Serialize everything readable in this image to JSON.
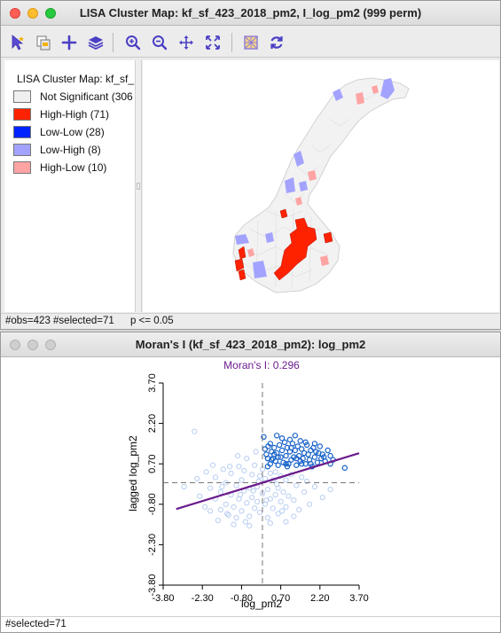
{
  "lisa_window": {
    "title": "LISA Cluster Map: kf_sf_423_2018_pm2, I_log_pm2 (999 perm)",
    "toolbar_icons": [
      "select-pointer-icon",
      "copy-layer-icon",
      "add-icon",
      "layers-icon",
      "zoom-in-icon",
      "zoom-out-icon",
      "pan-icon",
      "fit-extent-icon",
      "basemap-icon",
      "refresh-icon"
    ],
    "legend": {
      "title": "LISA Cluster Map: kf_sf_",
      "items": [
        {
          "label": "Not Significant (306",
          "color": "#f0f0f0"
        },
        {
          "label": "High-High (71)",
          "color": "#ff2200"
        },
        {
          "label": "Low-Low (28)",
          "color": "#0022ff"
        },
        {
          "label": "Low-High (8)",
          "color": "#a3a3ff"
        },
        {
          "label": "High-Low (10)",
          "color": "#ffa3a3"
        }
      ]
    },
    "status": {
      "obs": "#obs=423 #selected=71",
      "pvalue": "p <= 0.05"
    }
  },
  "moran_window": {
    "title": "Moran's I (kf_sf_423_2018_pm2): log_pm2",
    "status": "#selected=71"
  },
  "colors": {
    "regression_line": "#6a1b8c",
    "selected_point": "#1560c8",
    "unselected_point": "#b7cdf2",
    "moran_title": "#6a1b8c"
  },
  "chart_data": {
    "type": "scatter",
    "title": "Moran's I: 0.296",
    "xlabel": "log_pm2",
    "ylabel": "lagged log_pm2",
    "xlim": [
      -3.8,
      3.7
    ],
    "ylim": [
      -3.8,
      3.7
    ],
    "x_ticks": [
      "-3.80",
      "-2.30",
      "-0.80",
      "0.70",
      "2.20",
      "3.70"
    ],
    "y_ticks": [
      "-3.80",
      "-2.30",
      "-0.80",
      "0.70",
      "2.20",
      "3.70"
    ],
    "slope": 0.296,
    "intercept": 0.0,
    "x_mean": 0.0,
    "y_mean": 0.0,
    "series": [
      {
        "selected": true,
        "points": [
          [
            0.05,
            1.7
          ],
          [
            0.1,
            1.25
          ],
          [
            0.15,
            1.05
          ],
          [
            0.2,
            0.9
          ],
          [
            0.22,
            1.35
          ],
          [
            0.3,
            0.7
          ],
          [
            0.35,
            1.15
          ],
          [
            0.4,
            0.9
          ],
          [
            0.45,
            1.3
          ],
          [
            0.5,
            0.8
          ],
          [
            0.55,
            1.1
          ],
          [
            0.6,
            0.65
          ],
          [
            0.65,
            1.4
          ],
          [
            0.7,
            0.95
          ],
          [
            0.75,
            1.2
          ],
          [
            0.8,
            0.75
          ],
          [
            0.85,
            1.5
          ],
          [
            0.9,
            1.0
          ],
          [
            0.95,
            1.3
          ],
          [
            1.0,
            0.7
          ],
          [
            1.05,
            1.15
          ],
          [
            1.1,
            0.85
          ],
          [
            1.15,
            1.45
          ],
          [
            1.2,
            0.95
          ],
          [
            1.25,
            1.2
          ],
          [
            1.3,
            0.65
          ],
          [
            1.35,
            1.35
          ],
          [
            1.4,
            1.0
          ],
          [
            1.45,
            0.8
          ],
          [
            1.5,
            1.25
          ],
          [
            1.55,
            0.9
          ],
          [
            1.6,
            1.1
          ],
          [
            1.65,
            0.7
          ],
          [
            1.7,
            1.4
          ],
          [
            1.75,
            1.05
          ],
          [
            1.8,
            0.85
          ],
          [
            1.85,
            1.2
          ],
          [
            1.9,
            0.6
          ],
          [
            1.95,
            1.3
          ],
          [
            2.0,
            0.95
          ],
          [
            2.05,
            1.15
          ],
          [
            2.1,
            0.75
          ],
          [
            2.15,
            1.1
          ],
          [
            2.2,
            1.35
          ],
          [
            2.25,
            0.9
          ],
          [
            2.3,
            1.05
          ],
          [
            2.4,
            0.8
          ],
          [
            2.5,
            1.2
          ],
          [
            2.6,
            1.0
          ],
          [
            2.7,
            0.85
          ],
          [
            3.15,
            0.55
          ],
          [
            0.55,
            1.75
          ],
          [
            1.05,
            1.6
          ],
          [
            1.45,
            1.55
          ],
          [
            1.25,
            1.75
          ],
          [
            0.75,
            1.65
          ],
          [
            0.3,
            1.45
          ],
          [
            0.35,
            0.85
          ],
          [
            0.95,
            0.6
          ],
          [
            1.5,
            0.7
          ],
          [
            2.35,
            0.95
          ],
          [
            1.65,
            1.5
          ],
          [
            2.0,
            1.45
          ],
          [
            0.6,
            0.95
          ],
          [
            1.3,
            0.9
          ],
          [
            0.9,
            0.7
          ],
          [
            0.2,
            0.6
          ],
          [
            1.85,
            0.7
          ],
          [
            2.6,
            0.7
          ],
          [
            1.1,
            1.3
          ],
          [
            0.45,
            1.05
          ]
        ]
      },
      {
        "selected": false,
        "points": [
          [
            -2.6,
            1.9
          ],
          [
            -3.0,
            -0.15
          ],
          [
            -2.4,
            -0.5
          ],
          [
            -2.2,
            -0.9
          ],
          [
            -2.0,
            -0.2
          ],
          [
            -2.0,
            -1.05
          ],
          [
            -1.8,
            -0.6
          ],
          [
            -1.8,
            0.2
          ],
          [
            -1.6,
            -1.0
          ],
          [
            -1.6,
            -0.35
          ],
          [
            -1.5,
            0.5
          ],
          [
            -1.4,
            -0.8
          ],
          [
            -1.4,
            0.0
          ],
          [
            -1.3,
            -1.2
          ],
          [
            -1.2,
            -0.45
          ],
          [
            -1.2,
            0.35
          ],
          [
            -1.1,
            -0.9
          ],
          [
            -1.0,
            -0.1
          ],
          [
            -1.0,
            -1.3
          ],
          [
            -0.9,
            0.6
          ],
          [
            -0.9,
            -0.6
          ],
          [
            -0.8,
            0.1
          ],
          [
            -0.8,
            -1.05
          ],
          [
            -0.7,
            -0.3
          ],
          [
            -0.7,
            0.45
          ],
          [
            -0.6,
            -0.75
          ],
          [
            -0.6,
            0.9
          ],
          [
            -0.5,
            -0.2
          ],
          [
            -0.5,
            -1.25
          ],
          [
            -0.4,
            0.3
          ],
          [
            -0.4,
            -0.55
          ],
          [
            -0.3,
            -0.95
          ],
          [
            -0.3,
            0.65
          ],
          [
            -0.2,
            -0.15
          ],
          [
            -0.2,
            -0.7
          ],
          [
            -0.1,
            0.25
          ],
          [
            -0.1,
            -1.1
          ],
          [
            0.0,
            -0.4
          ],
          [
            0.0,
            0.5
          ],
          [
            0.1,
            -0.8
          ],
          [
            0.1,
            0.15
          ],
          [
            0.2,
            -0.25
          ],
          [
            0.2,
            -1.3
          ],
          [
            0.3,
            0.35
          ],
          [
            0.3,
            -0.6
          ],
          [
            0.4,
            -0.95
          ],
          [
            0.4,
            0.1
          ],
          [
            0.5,
            -0.45
          ],
          [
            0.5,
            0.4
          ],
          [
            0.6,
            -0.2
          ],
          [
            0.6,
            -1.15
          ],
          [
            0.7,
            0.25
          ],
          [
            0.7,
            -0.7
          ],
          [
            0.8,
            -0.35
          ],
          [
            0.9,
            0.1
          ],
          [
            0.9,
            -0.9
          ],
          [
            1.0,
            -0.5
          ],
          [
            1.1,
            0.3
          ],
          [
            1.2,
            -0.65
          ],
          [
            1.3,
            -0.1
          ],
          [
            1.4,
            -1.0
          ],
          [
            1.5,
            0.2
          ],
          [
            1.6,
            -0.35
          ],
          [
            1.8,
            -0.8
          ],
          [
            2.0,
            -0.15
          ],
          [
            2.3,
            -0.55
          ],
          [
            2.6,
            -0.25
          ],
          [
            -1.7,
            -1.4
          ],
          [
            -1.1,
            -1.55
          ],
          [
            -0.5,
            -1.6
          ],
          [
            0.3,
            -1.5
          ],
          [
            0.9,
            -1.45
          ],
          [
            -2.5,
            0.15
          ],
          [
            -1.9,
            0.65
          ],
          [
            -0.95,
            1.0
          ],
          [
            -0.25,
            1.15
          ],
          [
            0.25,
            0.9
          ],
          [
            -0.65,
            -1.45
          ],
          [
            -1.35,
            -1.15
          ],
          [
            1.2,
            -1.25
          ],
          [
            0.55,
            -0.05
          ],
          [
            -0.85,
            -0.45
          ],
          [
            -0.15,
            0.05
          ],
          [
            -1.55,
            -0.15
          ],
          [
            -2.15,
            0.4
          ],
          [
            0.75,
            -1.05
          ],
          [
            1.7,
            0.05
          ],
          [
            -0.35,
            -0.3
          ],
          [
            -1.25,
            0.6
          ],
          [
            0.15,
            -0.65
          ]
        ]
      }
    ]
  }
}
